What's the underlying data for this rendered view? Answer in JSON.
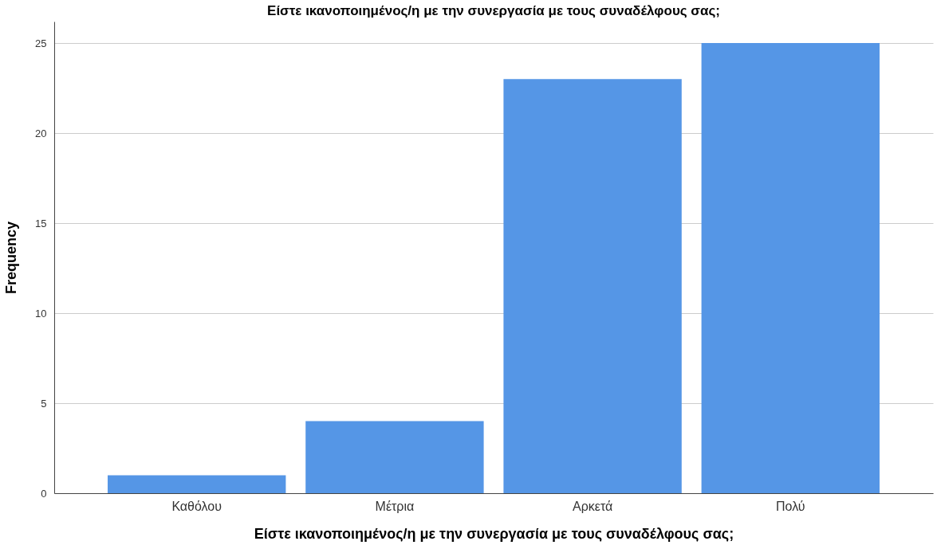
{
  "chart_data": {
    "type": "bar",
    "title": "Είστε ικανοποιημένος/η με την συνεργασία με τους συναδέλφους σας;",
    "xlabel": "Είστε ικανοποιημένος/η με την συνεργασία με τους συναδέλφους σας;",
    "ylabel": "Frequency",
    "categories": [
      "Καθόλου",
      "Μέτρια",
      "Αρκετά",
      "Πολύ"
    ],
    "series": [
      {
        "color": "#5596e6",
        "values": [
          1,
          4,
          23,
          25
        ]
      }
    ],
    "ylim": [
      0,
      26.2
    ],
    "yticks": [
      0,
      5,
      10,
      15,
      20,
      25
    ],
    "grid": "y"
  }
}
